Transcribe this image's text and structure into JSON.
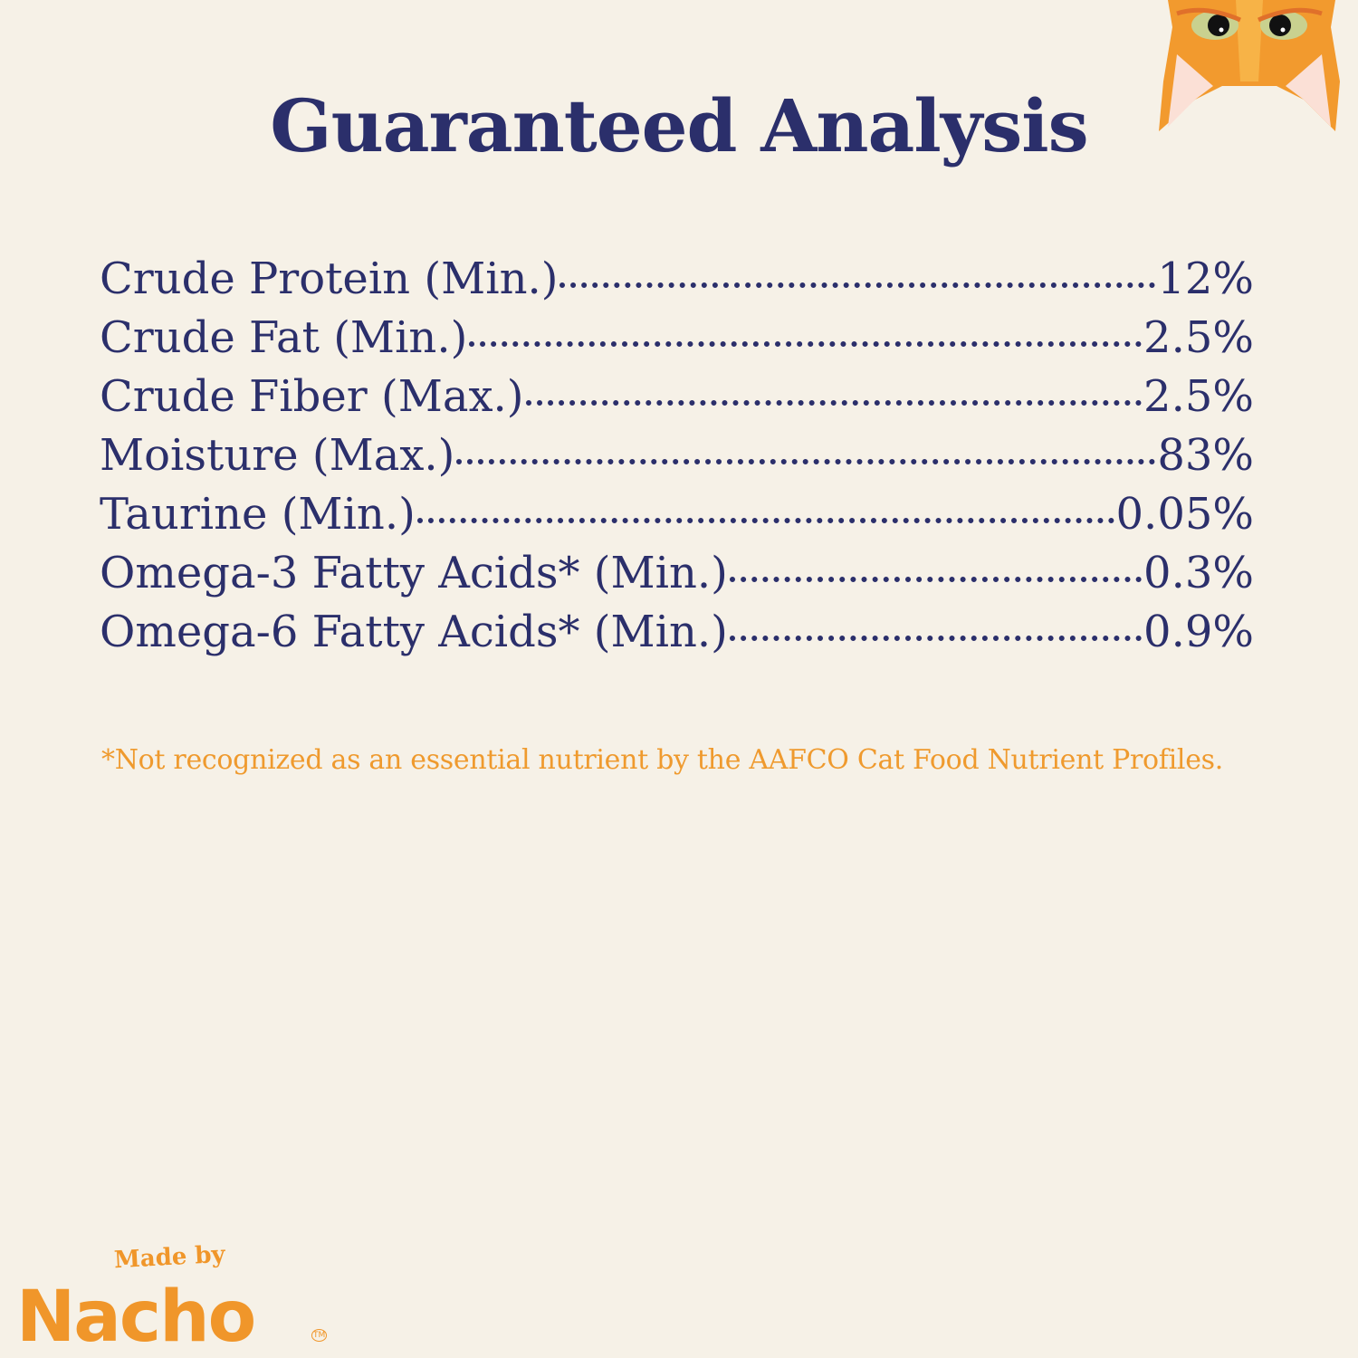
{
  "title": "Guaranteed Analysis",
  "rows": [
    {
      "label": "Crude Protein (Min.)",
      "value": "12%"
    },
    {
      "label": "Crude Fat (Min.)",
      "value": "2.5%"
    },
    {
      "label": "Crude Fiber (Max.)",
      "value": "2.5%"
    },
    {
      "label": "Moisture (Max.)",
      "value": "83%"
    },
    {
      "label": "Taurine (Min.)",
      "value": "0.05%"
    },
    {
      "label": "Omega-3 Fatty Acids* (Min.)",
      "value": "0.3%"
    },
    {
      "label": "Omega-6 Fatty Acids* (Min.)",
      "value": "0.9%"
    }
  ],
  "footnote": "*Not recognized as an essential nutrient by the AAFCO Cat Food Nutrient Profiles.",
  "logo": {
    "made_by": "Made by",
    "brand": "Nacho",
    "tm": "TM"
  },
  "colors": {
    "background": "#f6f1e7",
    "text": "#2b2f6b",
    "accent": "#f0962a"
  },
  "icons": {
    "corner_illustration": "cat-face-icon"
  }
}
